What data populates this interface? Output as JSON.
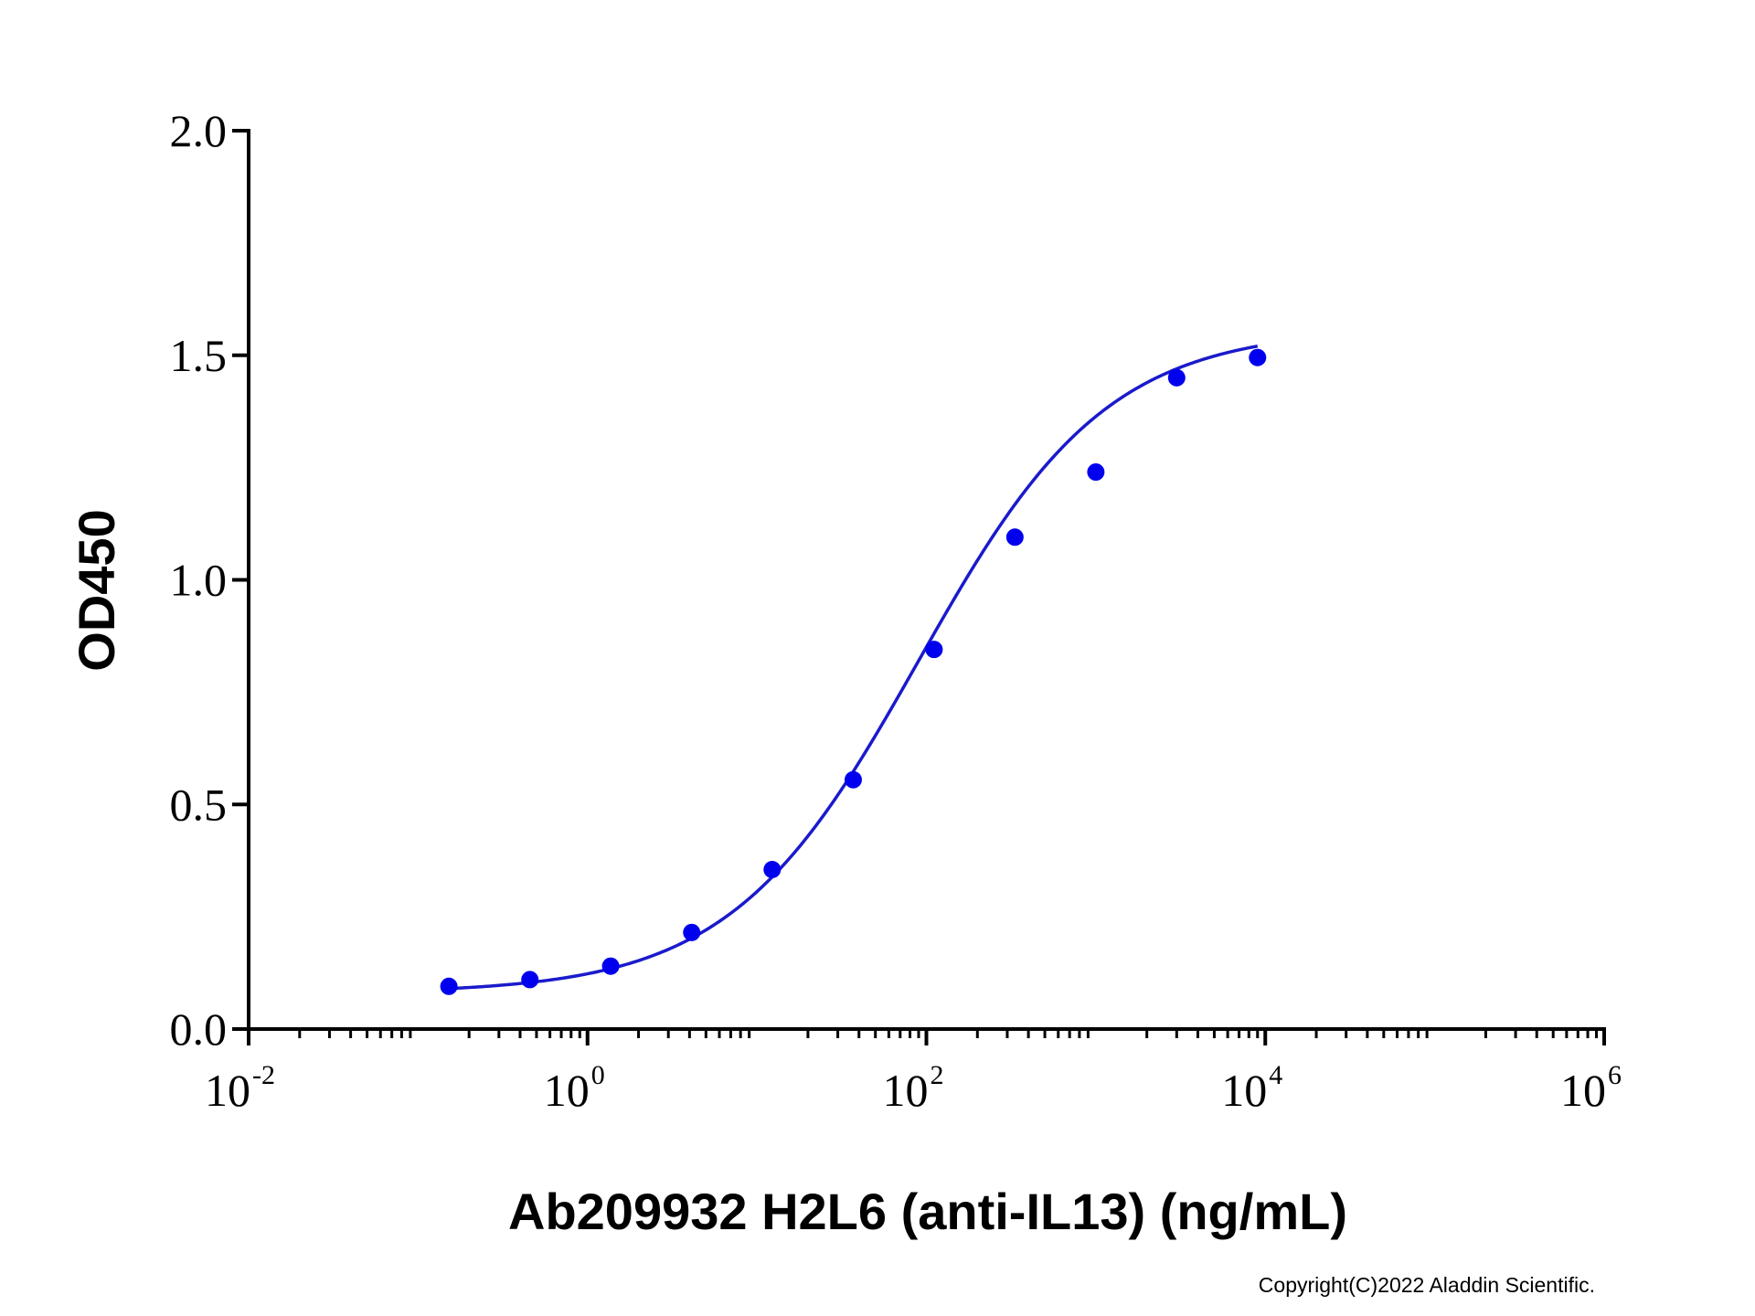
{
  "chart_data": {
    "type": "scatter",
    "title": "",
    "xlabel": "Ab209932 H2L6 (anti-IL13) (ng/mL)",
    "ylabel": "OD450",
    "x_scale": "log10",
    "xlim": [
      0.01,
      1000000
    ],
    "ylim": [
      0,
      2.0
    ],
    "grid": false,
    "x_ticks": [
      {
        "base": "10",
        "exp": "-2",
        "value": 0.01
      },
      {
        "base": "10",
        "exp": "0",
        "value": 1
      },
      {
        "base": "10",
        "exp": "2",
        "value": 100
      },
      {
        "base": "10",
        "exp": "4",
        "value": 10000
      },
      {
        "base": "10",
        "exp": "6",
        "value": 1000000
      }
    ],
    "y_ticks": [
      {
        "label": "0.0",
        "value": 0.0
      },
      {
        "label": "0.5",
        "value": 0.5
      },
      {
        "label": "1.0",
        "value": 1.0
      },
      {
        "label": "1.5",
        "value": 1.5
      },
      {
        "label": "2.0",
        "value": 2.0
      }
    ],
    "series": [
      {
        "color": "#0000ee",
        "x": [
          0.152,
          0.457,
          1.37,
          4.12,
          12.3,
          37.0,
          111,
          333,
          1000,
          3000,
          9000
        ],
        "y": [
          0.095,
          0.11,
          0.14,
          0.215,
          0.355,
          0.555,
          0.845,
          1.095,
          1.24,
          1.45,
          1.495
        ]
      }
    ],
    "fit_curve": {
      "model": "4PL",
      "color": "#1a1acc",
      "bottom": 0.08,
      "top": 1.56,
      "ec50": 90,
      "hill": 0.78,
      "x_range": [
        0.152,
        9000
      ]
    }
  },
  "copyright": "Copyright(C)2022 Aladdin Scientific."
}
